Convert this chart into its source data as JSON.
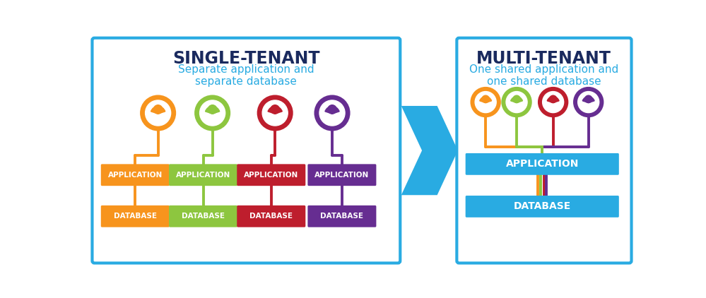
{
  "bg_color": "#ffffff",
  "border_color": "#29abe2",
  "single_title": "SINGLE-TENANT",
  "single_subtitle": "Separate application and\nseparate database",
  "multi_title": "MULTI-TENANT",
  "multi_subtitle": "One shared application and\none shared database",
  "title_color": "#1a2a5e",
  "subtitle_color": "#29abe2",
  "colors": [
    "#f7941d",
    "#8dc63f",
    "#be1e2d",
    "#662d91"
  ],
  "app_bar_color_multi": "#29abe2",
  "db_bar_color_multi": "#29abe2",
  "arrow_color": "#29abe2"
}
